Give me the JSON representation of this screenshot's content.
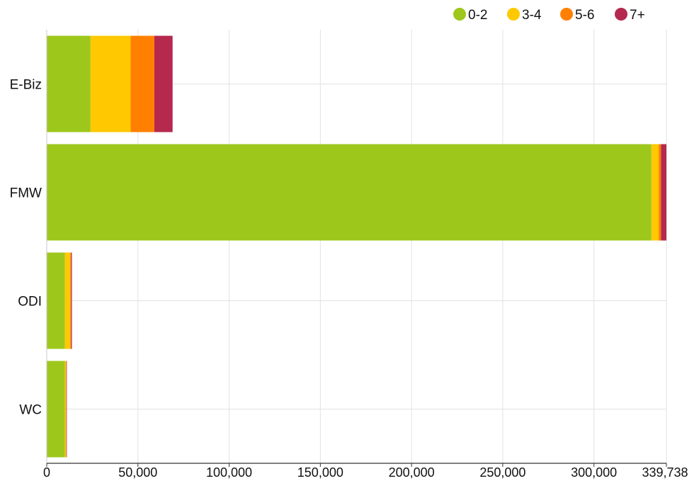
{
  "chart_data": {
    "type": "bar",
    "orientation": "horizontal",
    "stacked": true,
    "categories": [
      "E-Biz",
      "FMW",
      "ODI",
      "WC"
    ],
    "series": [
      {
        "name": "0-2",
        "color": "#9ec71c",
        "values": [
          24000,
          331500,
          10000,
          10000
        ]
      },
      {
        "name": "3-4",
        "color": "#ffc800",
        "values": [
          22000,
          4000,
          3000,
          500
        ]
      },
      {
        "name": "5-6",
        "color": "#ff8000",
        "values": [
          13000,
          1238,
          300,
          300
        ]
      },
      {
        "name": "7+",
        "color": "#b5294e",
        "values": [
          10000,
          3000,
          500,
          200
        ]
      }
    ],
    "xlim": [
      0,
      339738
    ],
    "xticks": [
      {
        "value": 0,
        "label": "0"
      },
      {
        "value": 50000,
        "label": "50,000"
      },
      {
        "value": 100000,
        "label": "100,000"
      },
      {
        "value": 150000,
        "label": "150,000"
      },
      {
        "value": 200000,
        "label": "200,000"
      },
      {
        "value": 250000,
        "label": "250,000"
      },
      {
        "value": 300000,
        "label": "300,000"
      },
      {
        "value": 339738,
        "label": "339,738"
      }
    ],
    "grid": true,
    "legend_position": "top-right",
    "title": "",
    "xlabel": "",
    "ylabel": ""
  }
}
